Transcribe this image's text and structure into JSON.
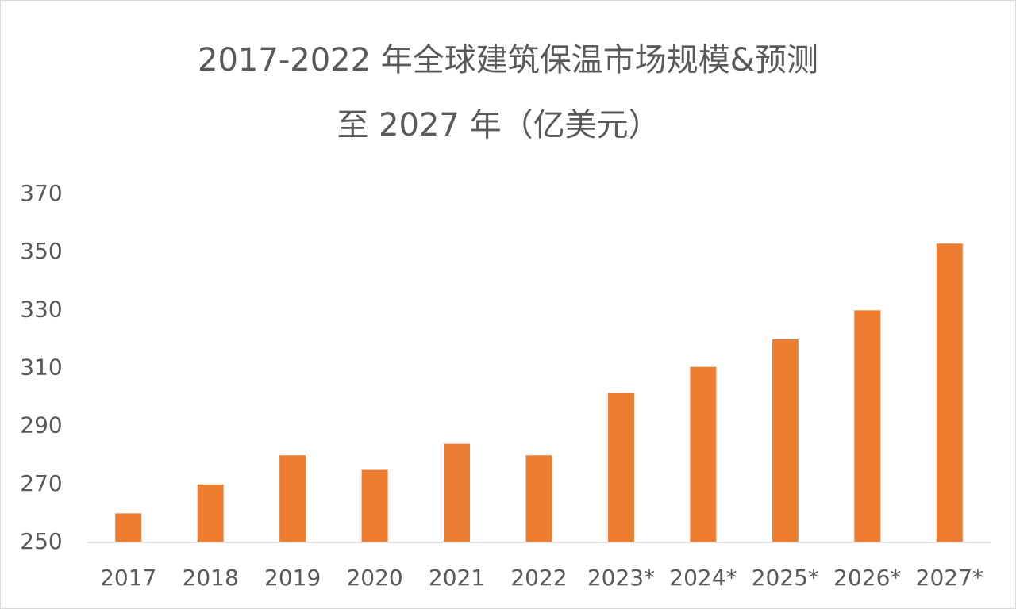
{
  "chart_data": {
    "type": "bar",
    "title": [
      "2017-2022 年全球建筑保温市场规模&预测",
      "至 2027 年（亿美元）"
    ],
    "categories": [
      "2017",
      "2018",
      "2019",
      "2020",
      "2021",
      "2022",
      "2023*",
      "2024*",
      "2025*",
      "2026*",
      "2027*"
    ],
    "values": [
      260,
      270,
      280,
      275,
      284,
      280,
      301.5,
      310.5,
      320,
      330,
      353
    ],
    "color": "#ed7d31",
    "ylim": [
      250,
      370
    ],
    "yticks": [
      250,
      270,
      290,
      310,
      330,
      350,
      370
    ],
    "grid": false
  }
}
